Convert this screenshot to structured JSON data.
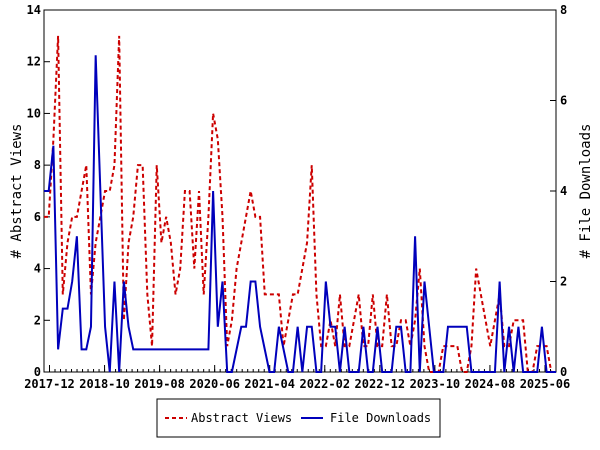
{
  "chart_data": {
    "type": "line",
    "ylabel_left": "# Abstract Views",
    "ylabel_right": "# File Downloads",
    "x_tick_labels": [
      "2017-12",
      "2018-10",
      "2019-08",
      "2020-06",
      "2021-04",
      "2022-02",
      "2022-12",
      "2023-10",
      "2024-08",
      "2025-06"
    ],
    "x_month_range": [
      "2017-11",
      "2025-08"
    ],
    "ylim_left": [
      0,
      14
    ],
    "ylim_right": [
      0,
      8
    ],
    "yticks_left": [
      0,
      2,
      4,
      6,
      8,
      10,
      12,
      14
    ],
    "yticks_right": [
      0,
      2,
      4,
      6,
      8
    ],
    "legend_position": "bottom",
    "series": [
      {
        "name": "Abstract Views",
        "axis": "left",
        "color": "#cc0000",
        "style": "dashed",
        "values": [
          6,
          6,
          9,
          13,
          3,
          5,
          6,
          6,
          7,
          8,
          3,
          5,
          6,
          7,
          7,
          8,
          13,
          2,
          5,
          6,
          8,
          8,
          3,
          1,
          8,
          5,
          6,
          5,
          3,
          4,
          7,
          7,
          4,
          7,
          3,
          6,
          10,
          9,
          6,
          1,
          2,
          4,
          5,
          6,
          7,
          6,
          6,
          3,
          3,
          3,
          3,
          1,
          2,
          3,
          3,
          4,
          5,
          8,
          3,
          1,
          1,
          2,
          1,
          3,
          1,
          1,
          2,
          3,
          1,
          1,
          3,
          1,
          1,
          3,
          1,
          1,
          2,
          2,
          1,
          2,
          4,
          1,
          0,
          0,
          0,
          1,
          1,
          1,
          1,
          0,
          0,
          1,
          4,
          3,
          2,
          1,
          2,
          3,
          1,
          1,
          2,
          2,
          2,
          0,
          0,
          1,
          1,
          1,
          0,
          0
        ]
      },
      {
        "name": "File Downloads",
        "axis": "right",
        "color": "#0000bb",
        "style": "solid",
        "values": [
          4,
          4,
          5,
          0.5,
          1.4,
          1.4,
          2,
          3,
          0.5,
          0.5,
          1,
          7,
          4,
          1,
          0,
          2,
          0,
          2,
          1,
          0.5,
          0.5,
          0.5,
          0.5,
          0.5,
          0.5,
          0.5,
          0.5,
          0.5,
          0.5,
          0.5,
          0.5,
          0.5,
          0.5,
          0.5,
          0.5,
          0.5,
          4,
          1,
          2,
          0,
          0,
          0.5,
          1,
          1,
          2,
          2,
          1,
          0.5,
          0,
          0,
          1,
          0.5,
          0,
          0,
          1,
          0,
          1,
          1,
          0,
          0,
          2,
          1,
          1,
          0,
          1,
          0,
          0,
          0,
          1,
          0,
          0,
          1,
          0,
          0,
          0,
          1,
          1,
          0,
          0,
          3,
          0,
          2,
          1,
          0,
          0,
          0,
          1,
          1,
          1,
          1,
          1,
          0,
          0,
          0,
          0,
          0,
          0,
          2,
          0,
          1,
          0,
          1,
          0,
          0,
          0,
          0,
          1,
          0,
          0,
          0
        ]
      }
    ]
  }
}
